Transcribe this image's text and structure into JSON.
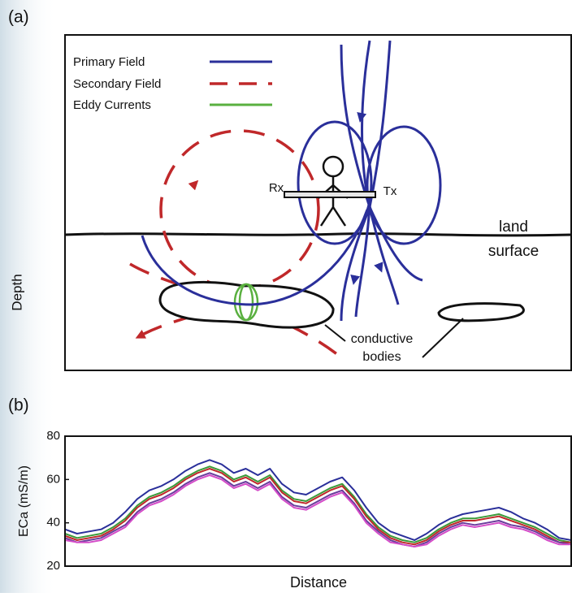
{
  "panel_a": {
    "label": "(a)",
    "legend": [
      "Primary Field",
      "Secondary Field",
      "Eddy Currents"
    ],
    "receiver": "Rx",
    "transmitter": "Tx",
    "surface_label": [
      "land",
      "surface"
    ],
    "depth_label": "Depth",
    "bodies_label": [
      "conductive",
      "bodies"
    ]
  },
  "chart_data": {
    "type": "line",
    "panel_label": "(b)",
    "ylabel": "ECa (mS/m)",
    "xlabel": "Distance",
    "ylim": [
      20,
      80
    ],
    "yticks": [
      20,
      40,
      60,
      80
    ],
    "series": [
      {
        "color": "#2a2f9a",
        "values": [
          37,
          35,
          36,
          37,
          40,
          45,
          51,
          55,
          57,
          60,
          64,
          67,
          69,
          67,
          63,
          65,
          62,
          65,
          58,
          54,
          53,
          56,
          59,
          61,
          55,
          47,
          40,
          36,
          34,
          32,
          35,
          39,
          42,
          44,
          45,
          46,
          47,
          45,
          42,
          40,
          37,
          33,
          32
        ]
      },
      {
        "color": "#3a9a3a",
        "values": [
          35,
          33,
          34,
          35,
          38,
          42,
          48,
          52,
          54,
          57,
          61,
          64,
          66,
          64,
          60,
          62,
          59,
          62,
          55,
          51,
          50,
          53,
          56,
          58,
          52,
          44,
          38,
          34,
          32,
          31,
          33,
          37,
          40,
          42,
          42,
          43,
          44,
          42,
          40,
          38,
          35,
          32,
          31
        ]
      },
      {
        "color": "#c0282a",
        "values": [
          34,
          32,
          33,
          34,
          37,
          41,
          47,
          51,
          53,
          56,
          60,
          63,
          65,
          63,
          59,
          61,
          58,
          61,
          54,
          50,
          49,
          52,
          55,
          57,
          51,
          43,
          37,
          33,
          31,
          30,
          32,
          36,
          39,
          41,
          41,
          42,
          43,
          41,
          39,
          37,
          34,
          31,
          31
        ]
      },
      {
        "color": "#6a3c9c",
        "values": [
          33,
          31,
          32,
          33,
          36,
          39,
          45,
          49,
          51,
          54,
          58,
          61,
          63,
          61,
          57,
          59,
          56,
          59,
          52,
          48,
          47,
          50,
          53,
          55,
          49,
          41,
          36,
          32,
          30,
          29,
          31,
          35,
          38,
          40,
          39,
          40,
          41,
          39,
          38,
          36,
          33,
          31,
          30
        ]
      },
      {
        "color": "#d44bc8",
        "values": [
          32,
          31,
          31,
          32,
          35,
          38,
          44,
          48,
          50,
          53,
          57,
          60,
          62,
          60,
          56,
          58,
          55,
          58,
          51,
          47,
          46,
          49,
          52,
          54,
          48,
          40,
          35,
          31,
          30,
          29,
          30,
          34,
          37,
          39,
          38,
          39,
          40,
          38,
          37,
          35,
          32,
          30,
          30
        ]
      }
    ]
  }
}
